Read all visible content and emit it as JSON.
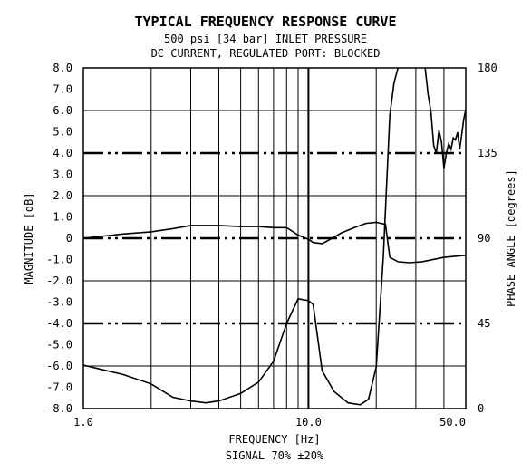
{
  "chart_data": {
    "type": "line",
    "title": "TYPICAL FREQUENCY RESPONSE CURVE",
    "subtitle_1": "500 psi [34 bar] INLET PRESSURE",
    "subtitle_2": "DC CURRENT, REGULATED PORT: BLOCKED",
    "xlabel": "FREQUENCY [Hz]",
    "xlabel_2": "SIGNAL 70% ±20%",
    "ylabel_left": "MAGNITUDE [dB]",
    "ylabel_right": "PHASE ANGLE [degrees]",
    "x_scale": "log",
    "xlim": [
      1,
      50
    ],
    "ylim_left": [
      -8,
      8
    ],
    "ylim_right": [
      0,
      180
    ],
    "grid": true,
    "x_ticks": [
      {
        "value": 1,
        "label": "1.0"
      },
      {
        "value": 10,
        "label": "10.0"
      },
      {
        "value": 50,
        "label": "50.0"
      }
    ],
    "y_left_ticks": [
      {
        "value": 8,
        "label": "8.0"
      },
      {
        "value": 7,
        "label": "7.0"
      },
      {
        "value": 6,
        "label": "6.0"
      },
      {
        "value": 5,
        "label": "5.0"
      },
      {
        "value": 4,
        "label": "4.0"
      },
      {
        "value": 3,
        "label": "3.0"
      },
      {
        "value": 2,
        "label": "2.0"
      },
      {
        "value": 1,
        "label": "1.0"
      },
      {
        "value": 0,
        "label": "0"
      },
      {
        "value": -1,
        "label": "-1.0"
      },
      {
        "value": -2,
        "label": "-2.0"
      },
      {
        "value": -3,
        "label": "-3.0"
      },
      {
        "value": -4,
        "label": "-4.0"
      },
      {
        "value": -5,
        "label": "-5.0"
      },
      {
        "value": -6,
        "label": "-6.0"
      },
      {
        "value": -7,
        "label": "-7.0"
      },
      {
        "value": -8,
        "label": "-8.0"
      }
    ],
    "y_right_ticks": [
      {
        "value": 180,
        "label": "180"
      },
      {
        "value": 135,
        "label": "135"
      },
      {
        "value": 90,
        "label": "90"
      },
      {
        "value": 45,
        "label": "45"
      },
      {
        "value": 0,
        "label": "0"
      }
    ],
    "reference_lines_db": [
      4,
      0,
      -4
    ],
    "magnitude_curve": [
      [
        1.0,
        0.0
      ],
      [
        1.5,
        0.2
      ],
      [
        2.0,
        0.3
      ],
      [
        2.5,
        0.45
      ],
      [
        3.0,
        0.6
      ],
      [
        4.0,
        0.6
      ],
      [
        5.0,
        0.55
      ],
      [
        6.0,
        0.55
      ],
      [
        7.0,
        0.5
      ],
      [
        8.0,
        0.5
      ],
      [
        9.0,
        0.15
      ],
      [
        10.0,
        -0.05
      ],
      [
        10.5,
        -0.2
      ],
      [
        11.5,
        -0.25
      ],
      [
        12.5,
        -0.05
      ],
      [
        14.0,
        0.25
      ],
      [
        16.0,
        0.5
      ],
      [
        18.0,
        0.7
      ],
      [
        20.0,
        0.75
      ],
      [
        22.0,
        0.65
      ],
      [
        23.0,
        -0.9
      ],
      [
        25.0,
        -1.1
      ],
      [
        28.0,
        -1.15
      ],
      [
        32.0,
        -1.1
      ],
      [
        40.0,
        -0.9
      ],
      [
        50.0,
        -0.8
      ]
    ],
    "phase_curve": [
      [
        1.0,
        23
      ],
      [
        1.5,
        18
      ],
      [
        2.0,
        13
      ],
      [
        2.5,
        6
      ],
      [
        3.0,
        4
      ],
      [
        3.5,
        3
      ],
      [
        4.0,
        4
      ],
      [
        5.0,
        8
      ],
      [
        6.0,
        14
      ],
      [
        7.0,
        25
      ],
      [
        8.0,
        45
      ],
      [
        9.0,
        58
      ],
      [
        10.0,
        57
      ],
      [
        10.5,
        55
      ],
      [
        11.5,
        20
      ],
      [
        13.0,
        9
      ],
      [
        15.0,
        3
      ],
      [
        17.0,
        2
      ],
      [
        18.5,
        5
      ],
      [
        20.0,
        22
      ],
      [
        21.5,
        80
      ],
      [
        23.0,
        155
      ],
      [
        24.0,
        172
      ],
      [
        25.0,
        180
      ],
      [
        30.0,
        186
      ],
      [
        33.0,
        180
      ],
      [
        34.0,
        166
      ],
      [
        35.0,
        157
      ],
      [
        36.0,
        139
      ],
      [
        37.0,
        135
      ],
      [
        38.0,
        147
      ],
      [
        39.0,
        141
      ],
      [
        40.0,
        127
      ],
      [
        41.0,
        135
      ],
      [
        42.0,
        140
      ],
      [
        43.0,
        137
      ],
      [
        44.0,
        143
      ],
      [
        45.0,
        142
      ],
      [
        46.0,
        146
      ],
      [
        47.0,
        137
      ],
      [
        48.0,
        145
      ],
      [
        49.0,
        153
      ],
      [
        50.0,
        158
      ]
    ]
  }
}
